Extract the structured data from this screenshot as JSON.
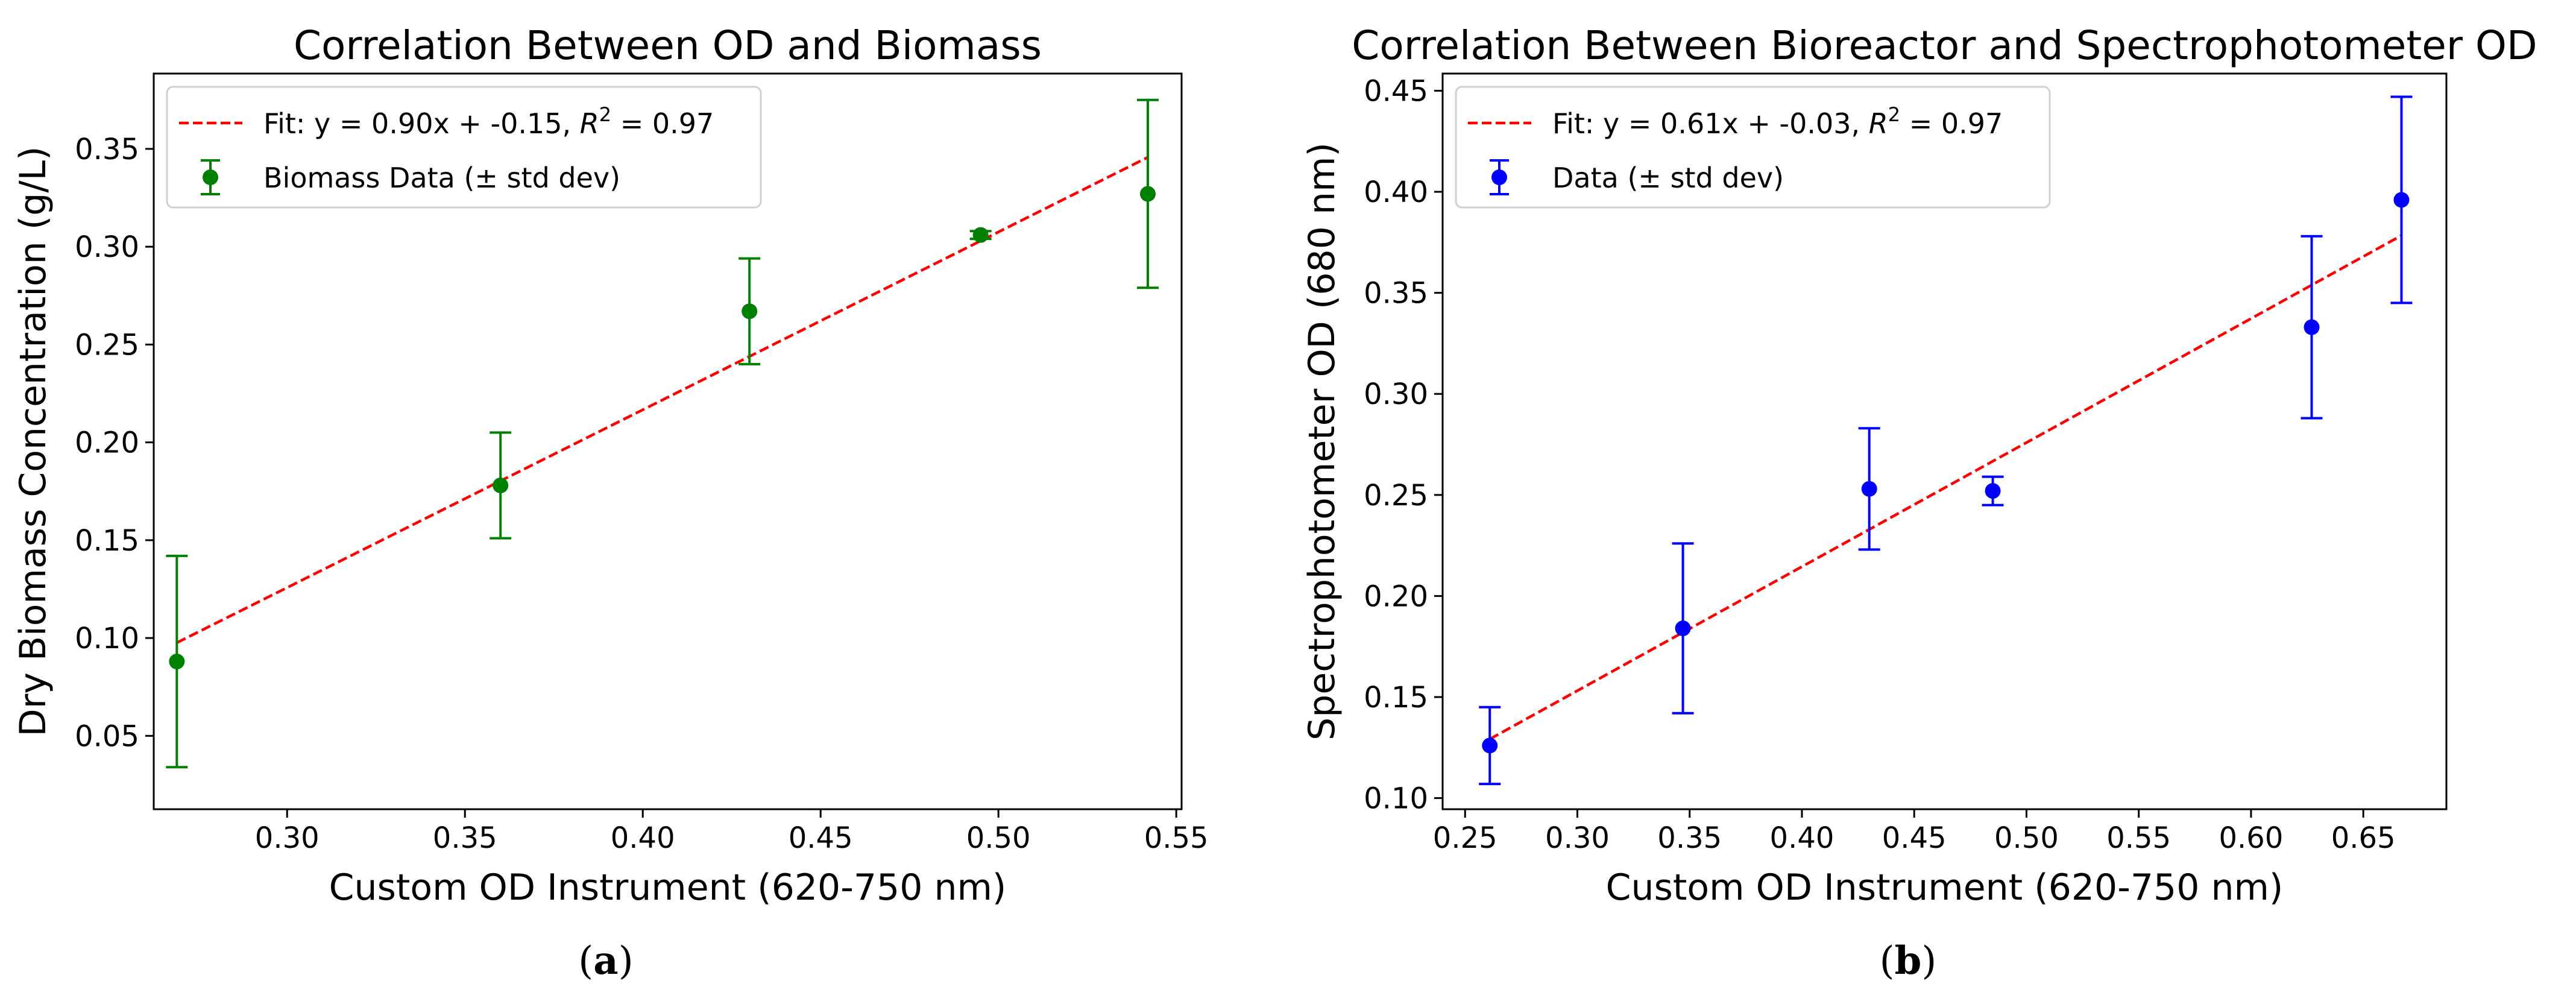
{
  "chart_data": [
    {
      "type": "scatter",
      "title": "Correlation Between OD and Biomass",
      "xlabel": "Custom OD Instrument (620-750 nm)",
      "ylabel": "Dry Biomass Concentration (g/L)",
      "xlim": [
        0.2625,
        0.5515
      ],
      "ylim": [
        0.0125,
        0.3885
      ],
      "xticks": [
        0.3,
        0.35,
        0.4,
        0.45,
        0.5,
        0.55
      ],
      "xtick_labels": [
        "0.30",
        "0.35",
        "0.40",
        "0.45",
        "0.50",
        "0.55"
      ],
      "yticks": [
        0.05,
        0.1,
        0.15,
        0.2,
        0.25,
        0.3,
        0.35
      ],
      "ytick_labels": [
        "0.05",
        "0.10",
        "0.15",
        "0.20",
        "0.25",
        "0.30",
        "0.35"
      ],
      "grid": false,
      "legend_position": "upper-left",
      "series": [
        {
          "name": "Biomass Data (± std dev)",
          "kind": "errorbar",
          "color": "#008000",
          "x": [
            0.269,
            0.36,
            0.43,
            0.495,
            0.542
          ],
          "y": [
            0.088,
            0.178,
            0.267,
            0.306,
            0.327
          ],
          "err": [
            0.054,
            0.027,
            0.027,
            0.002,
            0.048
          ]
        },
        {
          "name": "Fit: y = 0.90x + -0.15, ",
          "name_math": "R",
          "name_sup": "2",
          "name_tail": " = 0.97",
          "kind": "fit-line",
          "color": "#ff0000",
          "x": [
            0.269,
            0.542
          ],
          "y": [
            0.0976,
            0.3457
          ]
        }
      ],
      "caption": {
        "open": "(",
        "letter": "a",
        "close": ")"
      }
    },
    {
      "type": "scatter",
      "title": "Correlation Between Bioreactor and Spectrophotometer OD",
      "xlabel": "Custom OD Instrument (620-750 nm)",
      "ylabel": "Spectrophotometer OD (680 nm)",
      "xlim": [
        0.24,
        0.687
      ],
      "ylim": [
        0.0945,
        0.4585
      ],
      "xticks": [
        0.25,
        0.3,
        0.35,
        0.4,
        0.45,
        0.5,
        0.55,
        0.6,
        0.65
      ],
      "xtick_labels": [
        "0.25",
        "0.30",
        "0.35",
        "0.40",
        "0.45",
        "0.50",
        "0.55",
        "0.60",
        "0.65"
      ],
      "yticks": [
        0.1,
        0.15,
        0.2,
        0.25,
        0.3,
        0.35,
        0.4,
        0.45
      ],
      "ytick_labels": [
        "0.10",
        "0.15",
        "0.20",
        "0.25",
        "0.30",
        "0.35",
        "0.40",
        "0.45"
      ],
      "grid": false,
      "legend_position": "upper-left",
      "series": [
        {
          "name": "Data (± std dev)",
          "kind": "errorbar",
          "color": "#0000ff",
          "x": [
            0.261,
            0.347,
            0.43,
            0.485,
            0.627,
            0.667
          ],
          "y": [
            0.126,
            0.184,
            0.253,
            0.252,
            0.333,
            0.396
          ],
          "err": [
            0.019,
            0.042,
            0.03,
            0.007,
            0.045,
            0.051
          ]
        },
        {
          "name": "Fit: y = 0.61x + -0.03, ",
          "name_math": "R",
          "name_sup": "2",
          "name_tail": " = 0.97",
          "kind": "fit-line",
          "color": "#ff0000",
          "x": [
            0.261,
            0.667
          ],
          "y": [
            0.1292,
            0.3784
          ]
        }
      ],
      "caption": {
        "open": "(",
        "letter": "b",
        "close": ")"
      }
    }
  ]
}
